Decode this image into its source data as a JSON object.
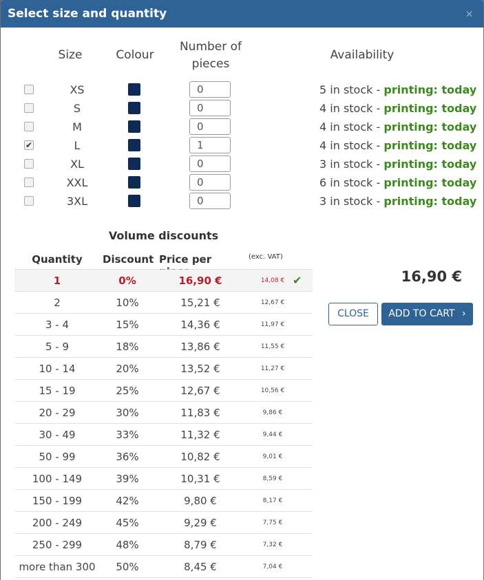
{
  "modal": {
    "title": "Select size and quantity",
    "close_glyph": "×"
  },
  "size_table": {
    "headers": {
      "size": "Size",
      "colour": "Colour",
      "pieces": "Number of pieces",
      "availability": "Availability"
    },
    "colour_hex": "#0f2a55",
    "rows": [
      {
        "checked": false,
        "size": "XS",
        "qty": "0",
        "stock": "5 in stock",
        "separator": " - ",
        "printing": "printing: today"
      },
      {
        "checked": false,
        "size": "S",
        "qty": "0",
        "stock": "4 in stock",
        "separator": " - ",
        "printing": "printing: today"
      },
      {
        "checked": false,
        "size": "M",
        "qty": "0",
        "stock": "4 in stock",
        "separator": " - ",
        "printing": "printing: today"
      },
      {
        "checked": true,
        "size": "L",
        "qty": "1",
        "stock": "4 in stock",
        "separator": " - ",
        "printing": "printing: today"
      },
      {
        "checked": false,
        "size": "XL",
        "qty": "0",
        "stock": "3 in stock",
        "separator": " - ",
        "printing": "printing: today"
      },
      {
        "checked": false,
        "size": "XXL",
        "qty": "0",
        "stock": "6 in stock",
        "separator": " - ",
        "printing": "printing: today"
      },
      {
        "checked": false,
        "size": "3XL",
        "qty": "0",
        "stock": "3 in stock",
        "separator": " - ",
        "printing": "printing: today"
      }
    ]
  },
  "volume_discounts": {
    "title": "Volume discounts",
    "headers": {
      "quantity": "Quantity",
      "discount": "Discount",
      "price": "Price per piece",
      "vat": "(exc. VAT)"
    },
    "rows": [
      {
        "quantity": "1",
        "discount": "0%",
        "price": "16,90 €",
        "price_exc_vat": "14,08 €",
        "active": true
      },
      {
        "quantity": "2",
        "discount": "10%",
        "price": "15,21 €",
        "price_exc_vat": "12,67 €",
        "active": false
      },
      {
        "quantity": "3 - 4",
        "discount": "15%",
        "price": "14,36 €",
        "price_exc_vat": "11,97 €",
        "active": false
      },
      {
        "quantity": "5 - 9",
        "discount": "18%",
        "price": "13,86 €",
        "price_exc_vat": "11,55 €",
        "active": false
      },
      {
        "quantity": "10 - 14",
        "discount": "20%",
        "price": "13,52 €",
        "price_exc_vat": "11,27 €",
        "active": false
      },
      {
        "quantity": "15 - 19",
        "discount": "25%",
        "price": "12,67 €",
        "price_exc_vat": "10,56 €",
        "active": false
      },
      {
        "quantity": "20 - 29",
        "discount": "30%",
        "price": "11,83 €",
        "price_exc_vat": "9,86 €",
        "active": false
      },
      {
        "quantity": "30 - 49",
        "discount": "33%",
        "price": "11,32 €",
        "price_exc_vat": "9,44 €",
        "active": false
      },
      {
        "quantity": "50 - 99",
        "discount": "36%",
        "price": "10,82 €",
        "price_exc_vat": "9,01 €",
        "active": false
      },
      {
        "quantity": "100 - 149",
        "discount": "39%",
        "price": "10,31 €",
        "price_exc_vat": "8,59 €",
        "active": false
      },
      {
        "quantity": "150 - 199",
        "discount": "42%",
        "price": "9,80 €",
        "price_exc_vat": "8,17 €",
        "active": false
      },
      {
        "quantity": "200 - 249",
        "discount": "45%",
        "price": "9,29 €",
        "price_exc_vat": "7,75 €",
        "active": false
      },
      {
        "quantity": "250 - 299",
        "discount": "48%",
        "price": "8,79 €",
        "price_exc_vat": "7,32 €",
        "active": false
      },
      {
        "quantity": "more than 300",
        "discount": "50%",
        "price": "8,45 €",
        "price_exc_vat": "7,04 €",
        "active": false
      }
    ]
  },
  "summary": {
    "total": "16,90 €"
  },
  "actions": {
    "close_label": "CLOSE",
    "add_to_cart_label": "ADD TO CART",
    "chevron": "›"
  }
}
